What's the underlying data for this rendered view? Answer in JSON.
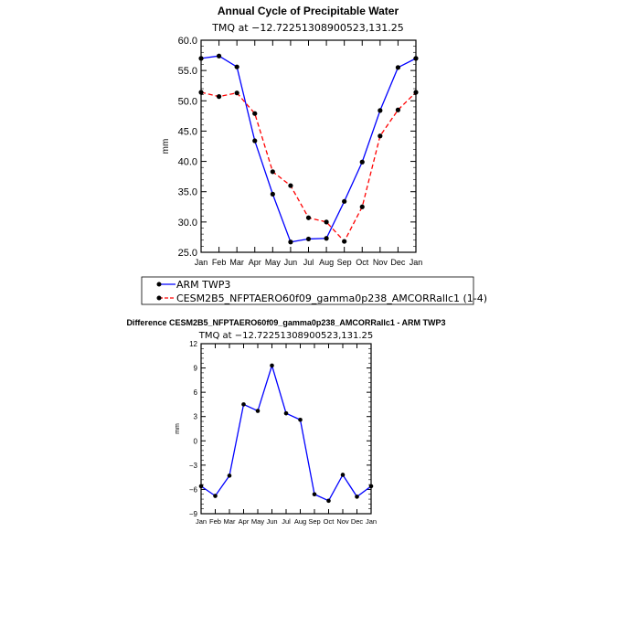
{
  "chart_data": [
    {
      "type": "line",
      "title": "Annual Cycle of Precipitable Water",
      "subtitle": "TMQ at −12.72251308900523,131.25",
      "xlabel": "",
      "ylabel": "mm",
      "ylim": [
        25,
        60
      ],
      "yticks": [
        "25.0",
        "30.0",
        "35.0",
        "40.0",
        "45.0",
        "50.0",
        "55.0",
        "60.0"
      ],
      "categories": [
        "Jan",
        "Feb",
        "Mar",
        "Apr",
        "May",
        "Jun",
        "Jul",
        "Aug",
        "Sep",
        "Oct",
        "Nov",
        "Dec",
        "Jan"
      ],
      "legend_position": "bottom",
      "series": [
        {
          "name": "ARM TWP3",
          "color": "#0000ff",
          "dash": false,
          "values": [
            57.0,
            57.4,
            55.6,
            43.4,
            34.6,
            26.7,
            27.2,
            27.3,
            33.4,
            39.9,
            48.4,
            55.5,
            57.0
          ]
        },
        {
          "name": "CESM2B5_NFPTAERO60f09_gamma0p238_AMCORRallc1 (1-4)",
          "color": "#ff0000",
          "dash": true,
          "values": [
            51.4,
            50.7,
            51.3,
            47.9,
            38.3,
            36.0,
            30.7,
            30.0,
            26.8,
            32.5,
            44.2,
            48.5,
            51.4
          ]
        }
      ]
    },
    {
      "type": "line",
      "title": "Difference CESM2B5_NFPTAERO60f09_gamma0p238_AMCORRallc1 - ARM TWP3",
      "subtitle": "TMQ at −12.72251308900523,131.25",
      "xlabel": "",
      "ylabel": "mm",
      "ylim": [
        -9,
        12
      ],
      "yticks": [
        "−9",
        "−6",
        "−3",
        "0",
        "3",
        "6",
        "9",
        "12"
      ],
      "categories": [
        "Jan",
        "Feb",
        "Mar",
        "Apr",
        "May",
        "Jun",
        "Jul",
        "Aug",
        "Sep",
        "Oct",
        "Nov",
        "Dec",
        "Jan"
      ],
      "series": [
        {
          "name": "Difference",
          "color": "#0000ff",
          "dash": false,
          "values": [
            -5.6,
            -6.8,
            -4.3,
            4.5,
            3.7,
            9.3,
            3.4,
            2.6,
            -6.6,
            -7.4,
            -4.2,
            -6.9,
            -5.6
          ]
        }
      ]
    }
  ]
}
